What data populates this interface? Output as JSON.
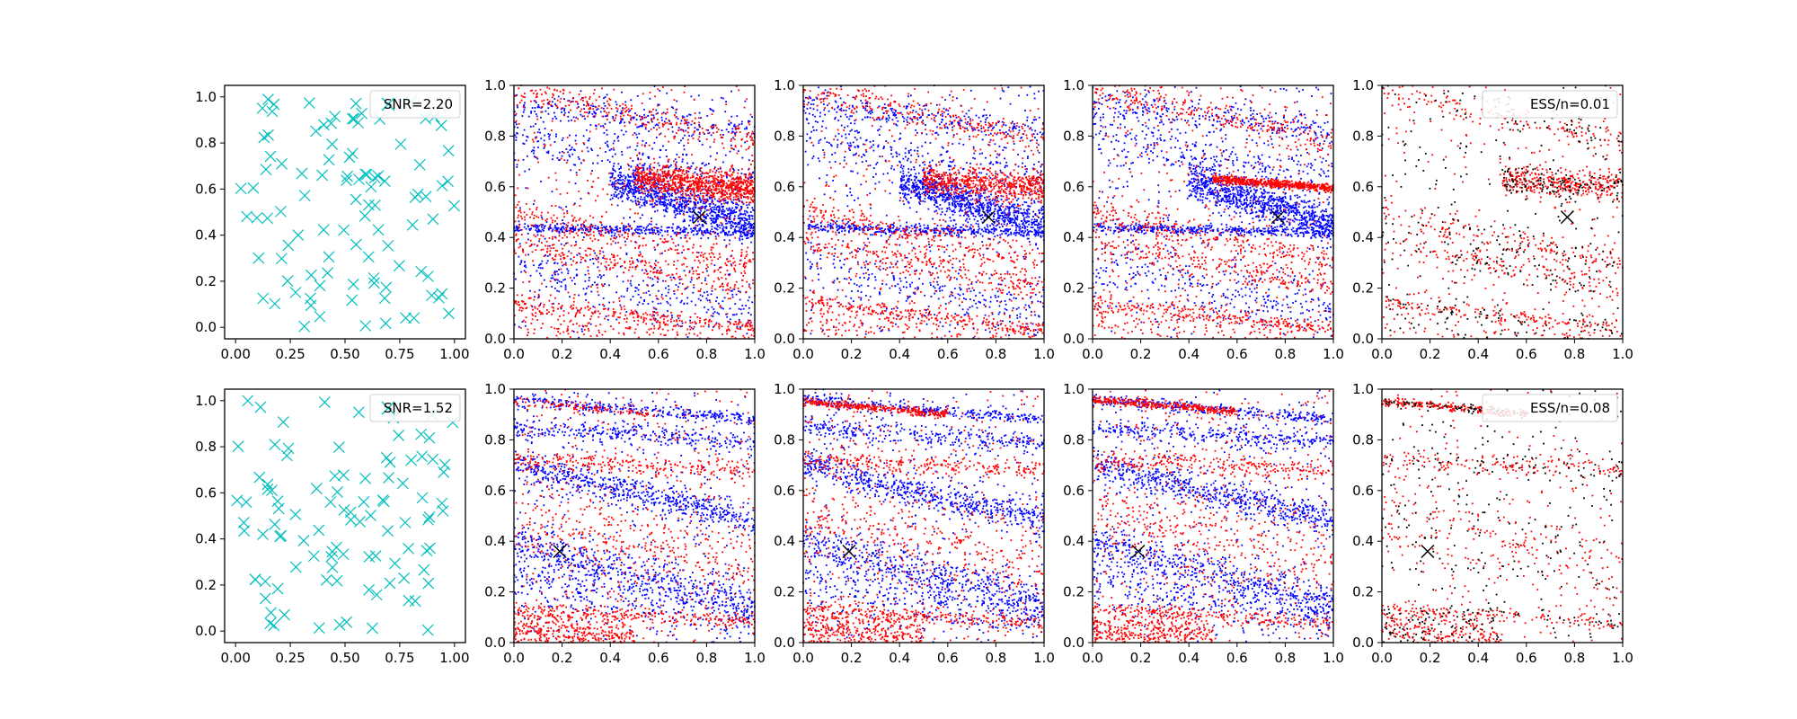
{
  "figure": {
    "background": "#ffffff"
  },
  "colors": {
    "x_marker": "#00bfbf",
    "blue": "#0000ff",
    "red": "#ff0000",
    "black": "#000000",
    "axis": "#000000"
  },
  "ticks": {
    "design_x": [
      "0.00",
      "0.25",
      "0.50",
      "0.75",
      "1.00"
    ],
    "unit": [
      "0.0",
      "0.2",
      "0.4",
      "0.6",
      "0.8",
      "1.0"
    ]
  },
  "chart_data": [
    {
      "type": "scatter",
      "row": 1,
      "col": 1,
      "legend": "SNR=2.20",
      "legend_position": "top-right",
      "xlim": [
        0,
        1
      ],
      "ylim": [
        0,
        1
      ],
      "marker": "x",
      "color": "#00bfbf",
      "n_points": 100
    },
    {
      "type": "scatter",
      "row": 1,
      "col": 2,
      "xlim": [
        0,
        1
      ],
      "ylim": [
        0,
        1
      ],
      "series": [
        {
          "color": "#0000ff"
        },
        {
          "color": "#ff0000"
        }
      ],
      "true_point": [
        0.77,
        0.48
      ]
    },
    {
      "type": "scatter",
      "row": 1,
      "col": 3,
      "xlim": [
        0,
        1
      ],
      "ylim": [
        0,
        1
      ],
      "series": [
        {
          "color": "#0000ff"
        },
        {
          "color": "#ff0000"
        }
      ],
      "true_point": [
        0.77,
        0.48
      ]
    },
    {
      "type": "scatter",
      "row": 1,
      "col": 4,
      "xlim": [
        0,
        1
      ],
      "ylim": [
        0,
        1
      ],
      "series": [
        {
          "color": "#0000ff"
        },
        {
          "color": "#ff0000"
        }
      ],
      "true_point": [
        0.77,
        0.48
      ]
    },
    {
      "type": "scatter",
      "row": 1,
      "col": 5,
      "legend": "ESS/n=0.01",
      "legend_position": "top-right",
      "xlim": [
        0,
        1
      ],
      "ylim": [
        0,
        1
      ],
      "series": [
        {
          "color": "#ff0000"
        },
        {
          "color": "#000000"
        }
      ],
      "true_point": [
        0.77,
        0.48
      ]
    },
    {
      "type": "scatter",
      "row": 2,
      "col": 1,
      "legend": "SNR=1.52",
      "legend_position": "top-right",
      "xlim": [
        0,
        1
      ],
      "ylim": [
        0,
        1
      ],
      "marker": "x",
      "color": "#00bfbf",
      "n_points": 100
    },
    {
      "type": "scatter",
      "row": 2,
      "col": 2,
      "xlim": [
        0,
        1
      ],
      "ylim": [
        0,
        1
      ],
      "series": [
        {
          "color": "#0000ff"
        },
        {
          "color": "#ff0000"
        }
      ],
      "true_point": [
        0.19,
        0.36
      ]
    },
    {
      "type": "scatter",
      "row": 2,
      "col": 3,
      "xlim": [
        0,
        1
      ],
      "ylim": [
        0,
        1
      ],
      "series": [
        {
          "color": "#0000ff"
        },
        {
          "color": "#ff0000"
        }
      ],
      "true_point": [
        0.19,
        0.36
      ]
    },
    {
      "type": "scatter",
      "row": 2,
      "col": 4,
      "xlim": [
        0,
        1
      ],
      "ylim": [
        0,
        1
      ],
      "series": [
        {
          "color": "#0000ff"
        },
        {
          "color": "#ff0000"
        }
      ],
      "true_point": [
        0.19,
        0.36
      ]
    },
    {
      "type": "scatter",
      "row": 2,
      "col": 5,
      "legend": "ESS/n=0.08",
      "legend_position": "top-right",
      "xlim": [
        0,
        1
      ],
      "ylim": [
        0,
        1
      ],
      "series": [
        {
          "color": "#ff0000"
        },
        {
          "color": "#000000"
        }
      ],
      "true_point": [
        0.19,
        0.36
      ]
    }
  ]
}
